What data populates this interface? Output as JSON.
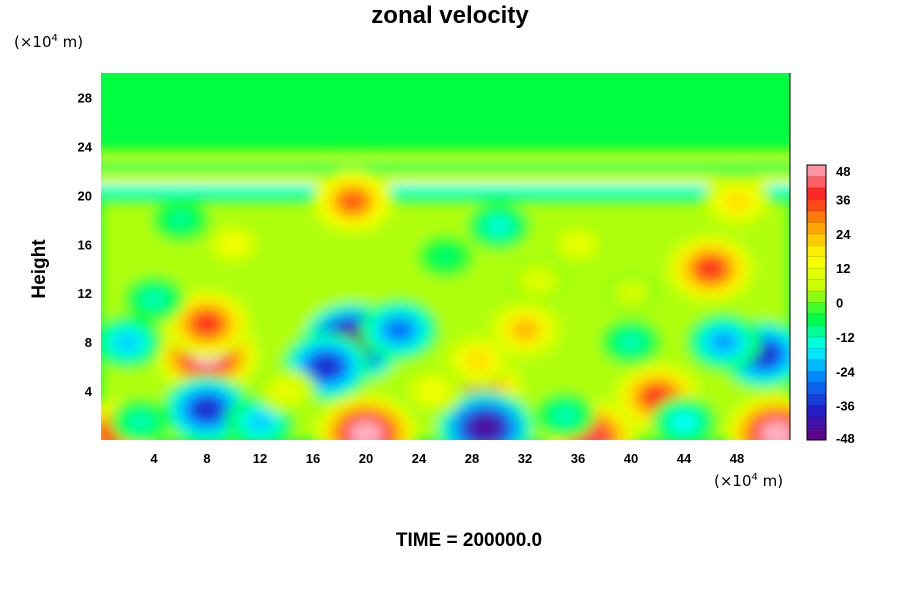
{
  "page": {
    "time_label": "TIME = 200000.0"
  },
  "chart_data": {
    "type": "heatmap",
    "title": "zonal velocity",
    "xlabel": "",
    "ylabel": "Height",
    "x_unit": "(×10⁴ m)",
    "y_unit": "(×10⁴ m)",
    "xlim": [
      0,
      52
    ],
    "ylim": [
      0,
      30
    ],
    "x_ticks": [
      4,
      8,
      12,
      16,
      20,
      24,
      28,
      32,
      36,
      40,
      44,
      48
    ],
    "y_ticks": [
      4,
      8,
      12,
      16,
      20,
      24,
      28
    ],
    "colorbar": {
      "min": -48,
      "max": 48,
      "step": 4,
      "tick_values": [
        48,
        36,
        24,
        12,
        0,
        -12,
        -24,
        -36,
        -48
      ]
    },
    "colorscale": [
      "#6a0080",
      "#2020c8",
      "#0080ff",
      "#00ffff",
      "#00ff40",
      "#c8ff00",
      "#ffff00",
      "#ffa000",
      "#ff2020",
      "#ffb0c0"
    ],
    "features": [
      {
        "x": 8,
        "y": 7,
        "value": 48
      },
      {
        "x": 8,
        "y": 9.5,
        "value": 36
      },
      {
        "x": 8,
        "y": 2.5,
        "value": -36
      },
      {
        "x": 19,
        "y": 8,
        "value": -48
      },
      {
        "x": 17,
        "y": 6,
        "value": -36
      },
      {
        "x": 22.5,
        "y": 9,
        "value": -28
      },
      {
        "x": 20,
        "y": 0.5,
        "value": 48
      },
      {
        "x": 28.5,
        "y": 4.5,
        "value": 36
      },
      {
        "x": 28.5,
        "y": 6.5,
        "value": 20
      },
      {
        "x": 29,
        "y": 1,
        "value": -44
      },
      {
        "x": 32,
        "y": 9,
        "value": 24
      },
      {
        "x": 42,
        "y": 3.5,
        "value": 36
      },
      {
        "x": 40,
        "y": 8,
        "value": -12
      },
      {
        "x": 50,
        "y": 7,
        "value": -36
      },
      {
        "x": 47,
        "y": 8,
        "value": -24
      },
      {
        "x": 51,
        "y": 0.5,
        "value": 48
      },
      {
        "x": 37,
        "y": 0.3,
        "value": 40
      },
      {
        "x": 1,
        "y": 0.5,
        "value": 36
      },
      {
        "x": 3,
        "y": 1.5,
        "value": -12
      },
      {
        "x": 12,
        "y": 1.5,
        "value": -20
      },
      {
        "x": 44,
        "y": 1.5,
        "value": -16
      },
      {
        "x": 35,
        "y": 2,
        "value": -12
      },
      {
        "x": 2,
        "y": 8,
        "value": -20
      },
      {
        "x": 14,
        "y": 4,
        "value": 12
      },
      {
        "x": 25,
        "y": 4,
        "value": 14
      },
      {
        "x": 46,
        "y": 14,
        "value": 36
      },
      {
        "x": 19,
        "y": 19.5,
        "value": 32
      },
      {
        "x": 48,
        "y": 19.5,
        "value": 20
      },
      {
        "x": 10,
        "y": 16,
        "value": 14
      },
      {
        "x": 36,
        "y": 16,
        "value": 12
      },
      {
        "x": 30,
        "y": 17.5,
        "value": -14
      },
      {
        "x": 6,
        "y": 18,
        "value": -10
      },
      {
        "x": 4,
        "y": 11.5,
        "value": -12
      },
      {
        "x": 33,
        "y": 13,
        "value": 10
      },
      {
        "x": 26,
        "y": 15,
        "value": -8
      },
      {
        "x": 40,
        "y": 12,
        "value": 8
      }
    ],
    "bands": [
      {
        "y": 20.5,
        "value": -16
      },
      {
        "y": 21.3,
        "value": 14
      },
      {
        "y": 22.3,
        "value": -6
      },
      {
        "y": 23.2,
        "value": 8
      }
    ]
  }
}
